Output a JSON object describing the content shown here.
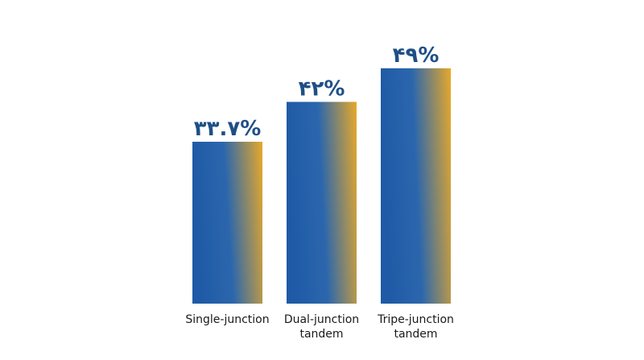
{
  "chart_data": {
    "type": "bar",
    "categories": [
      [
        "Single-junction"
      ],
      [
        "Dual-junction",
        "tandem"
      ],
      [
        "Tripe-junction",
        "tandem"
      ]
    ],
    "values": [
      33.7,
      42,
      49
    ],
    "value_labels": [
      "۳۳.۷%",
      "۴۲%",
      "۴۹%"
    ],
    "ylim": [
      0,
      56
    ],
    "grid": false,
    "colors": {
      "bar_start": "#1f5aa6",
      "bar_mid": "#2b66ad",
      "bar_end": "#e7a92a",
      "value_text": "#1f4f86"
    }
  }
}
